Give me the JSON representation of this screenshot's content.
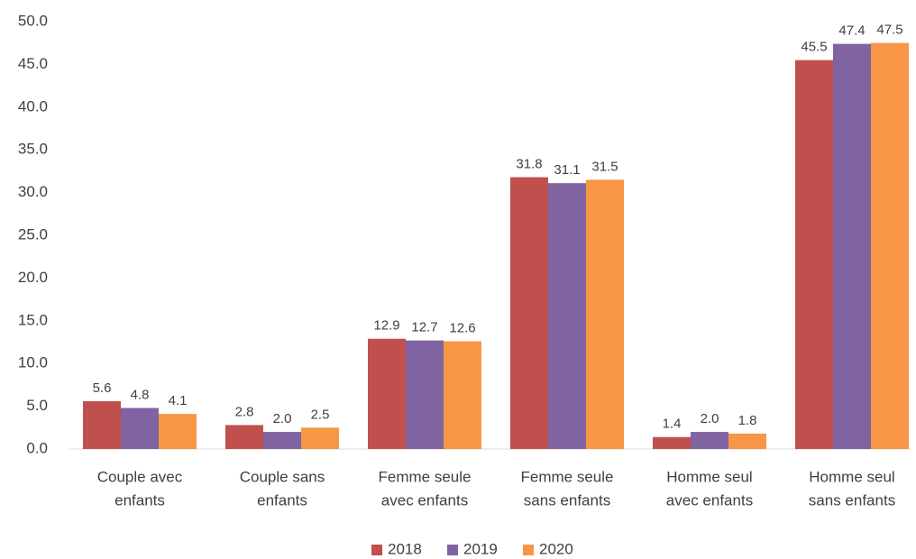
{
  "chart_data": {
    "type": "bar",
    "categories": [
      [
        "Couple avec",
        "enfants"
      ],
      [
        "Couple sans",
        "enfants"
      ],
      [
        "Femme seule",
        "avec enfants"
      ],
      [
        "Femme seule",
        "sans enfants"
      ],
      [
        "Homme seul",
        "avec enfants"
      ],
      [
        "Homme seul",
        "sans enfants"
      ]
    ],
    "series": [
      {
        "name": "2018",
        "color": "#c0504d",
        "values": [
          5.6,
          2.8,
          12.9,
          31.8,
          1.4,
          45.5
        ],
        "value_labels": [
          "5.6",
          "2.8",
          "12.9",
          "31.8",
          "1.4",
          "45.5"
        ]
      },
      {
        "name": "2019",
        "color": "#8064a2",
        "values": [
          4.8,
          2,
          12.7,
          31.1,
          2,
          47.4
        ],
        "value_labels": [
          "4.8",
          "2.0",
          "12.7",
          "31.1",
          "2.0",
          "47.4"
        ]
      },
      {
        "name": "2020",
        "color": "#f79646",
        "values": [
          4.1,
          2.5,
          12.6,
          31.5,
          1.8,
          47.5
        ],
        "value_labels": [
          "4.1",
          "2.5",
          "12.6",
          "31.5",
          "1.8",
          "47.5"
        ]
      }
    ],
    "ylim": [
      0,
      50
    ],
    "yticks": [
      {
        "value": 0,
        "label": "0.0"
      },
      {
        "value": 5,
        "label": "5.0"
      },
      {
        "value": 10,
        "label": "10.0"
      },
      {
        "value": 15,
        "label": "15.0"
      },
      {
        "value": 20,
        "label": "20.0"
      },
      {
        "value": 25,
        "label": "25.0"
      },
      {
        "value": 30,
        "label": "30.0"
      },
      {
        "value": 35,
        "label": "35.0"
      },
      {
        "value": 40,
        "label": "40.0"
      },
      {
        "value": 45,
        "label": "45.0"
      },
      {
        "value": 50,
        "label": "50.0"
      }
    ],
    "grid": false,
    "legend": "bottom"
  }
}
